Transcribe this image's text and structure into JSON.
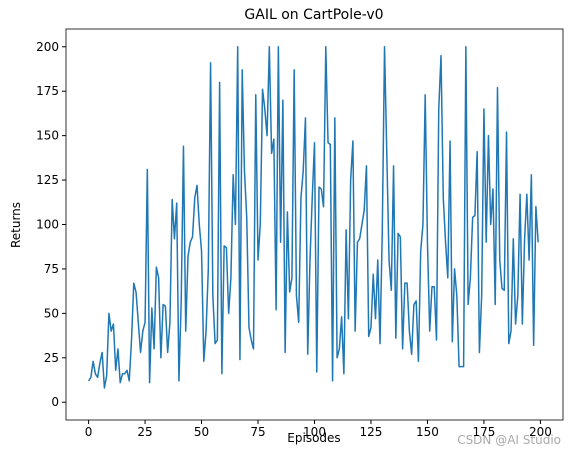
{
  "chart_data": {
    "type": "line",
    "title": "GAIL on CartPole-v0",
    "x_label": "Episodes",
    "y_label": "Returns",
    "watermark": "CSDN @AI Studio",
    "x": [
      0,
      1,
      2,
      3,
      4,
      5,
      6,
      7,
      8,
      9,
      10,
      11,
      12,
      13,
      14,
      15,
      16,
      17,
      18,
      19,
      20,
      21,
      22,
      23,
      24,
      25,
      26,
      27,
      28,
      29,
      30,
      31,
      32,
      33,
      34,
      35,
      36,
      37,
      38,
      39,
      40,
      41,
      42,
      43,
      44,
      45,
      46,
      47,
      48,
      49,
      50,
      51,
      52,
      53,
      54,
      55,
      56,
      57,
      58,
      59,
      60,
      61,
      62,
      63,
      64,
      65,
      66,
      67,
      68,
      69,
      70,
      71,
      72,
      73,
      74,
      75,
      76,
      77,
      78,
      79,
      80,
      81,
      82,
      83,
      84,
      85,
      86,
      87,
      88,
      89,
      90,
      91,
      92,
      93,
      94,
      95,
      96,
      97,
      98,
      99,
      100,
      101,
      102,
      103,
      104,
      105,
      106,
      107,
      108,
      109,
      110,
      111,
      112,
      113,
      114,
      115,
      116,
      117,
      118,
      119,
      120,
      121,
      122,
      123,
      124,
      125,
      126,
      127,
      128,
      129,
      130,
      131,
      132,
      133,
      134,
      135,
      136,
      137,
      138,
      139,
      140,
      141,
      142,
      143,
      144,
      145,
      146,
      147,
      148,
      149,
      150,
      151,
      152,
      153,
      154,
      155,
      156,
      157,
      158,
      159,
      160,
      161,
      162,
      163,
      164,
      165,
      166,
      167,
      168,
      169,
      170,
      171,
      172,
      173,
      174,
      175,
      176,
      177,
      178,
      179,
      180,
      181,
      182,
      183,
      184,
      185,
      186,
      187,
      188,
      189,
      190,
      191,
      192,
      193,
      194,
      195,
      196,
      197,
      198,
      199
    ],
    "series": [
      {
        "color": "#1f77b4",
        "values": [
          12,
          14,
          23,
          16,
          14,
          22,
          28,
          8,
          15,
          50,
          40,
          44,
          18,
          30,
          11,
          16,
          16,
          18,
          12,
          35,
          67,
          62,
          45,
          28,
          40,
          45,
          131,
          11,
          53,
          30,
          76,
          70,
          25,
          55,
          54,
          28,
          45,
          114,
          92,
          112,
          12,
          57,
          144,
          40,
          82,
          90,
          93,
          115,
          122,
          100,
          85,
          23,
          40,
          75,
          191,
          60,
          33,
          35,
          180,
          16,
          88,
          87,
          50,
          70,
          128,
          100,
          200,
          24,
          187,
          130,
          104,
          42,
          35,
          30,
          173,
          80,
          100,
          176,
          165,
          150,
          200,
          140,
          148,
          52,
          200,
          90,
          170,
          28,
          107,
          62,
          70,
          187,
          60,
          45,
          115,
          130,
          160,
          27,
          80,
          115,
          146,
          17,
          121,
          120,
          110,
          200,
          146,
          145,
          12,
          160,
          25,
          30,
          48,
          16,
          97,
          47,
          125,
          147,
          40,
          90,
          92,
          100,
          108,
          133,
          37,
          42,
          72,
          47,
          80,
          33,
          96,
          200,
          140,
          80,
          63,
          133,
          36,
          95,
          93,
          30,
          67,
          67,
          40,
          27,
          55,
          57,
          23,
          85,
          100,
          173,
          90,
          40,
          65,
          65,
          35,
          165,
          195,
          115,
          90,
          70,
          147,
          34,
          75,
          60,
          20,
          20,
          20,
          200,
          55,
          70,
          104,
          105,
          141,
          28,
          60,
          165,
          90,
          150,
          100,
          120,
          55,
          177,
          80,
          64,
          63,
          152,
          33,
          40,
          92,
          44,
          60,
          117,
          44,
          92,
          117,
          80,
          128,
          32,
          110,
          90
        ]
      }
    ],
    "xlim": [
      -10,
      210
    ],
    "ylim": [
      -10,
      210
    ],
    "xticks": [
      0,
      25,
      50,
      75,
      100,
      125,
      150,
      175,
      200
    ],
    "yticks": [
      0,
      25,
      50,
      75,
      100,
      125,
      150,
      175,
      200
    ]
  }
}
